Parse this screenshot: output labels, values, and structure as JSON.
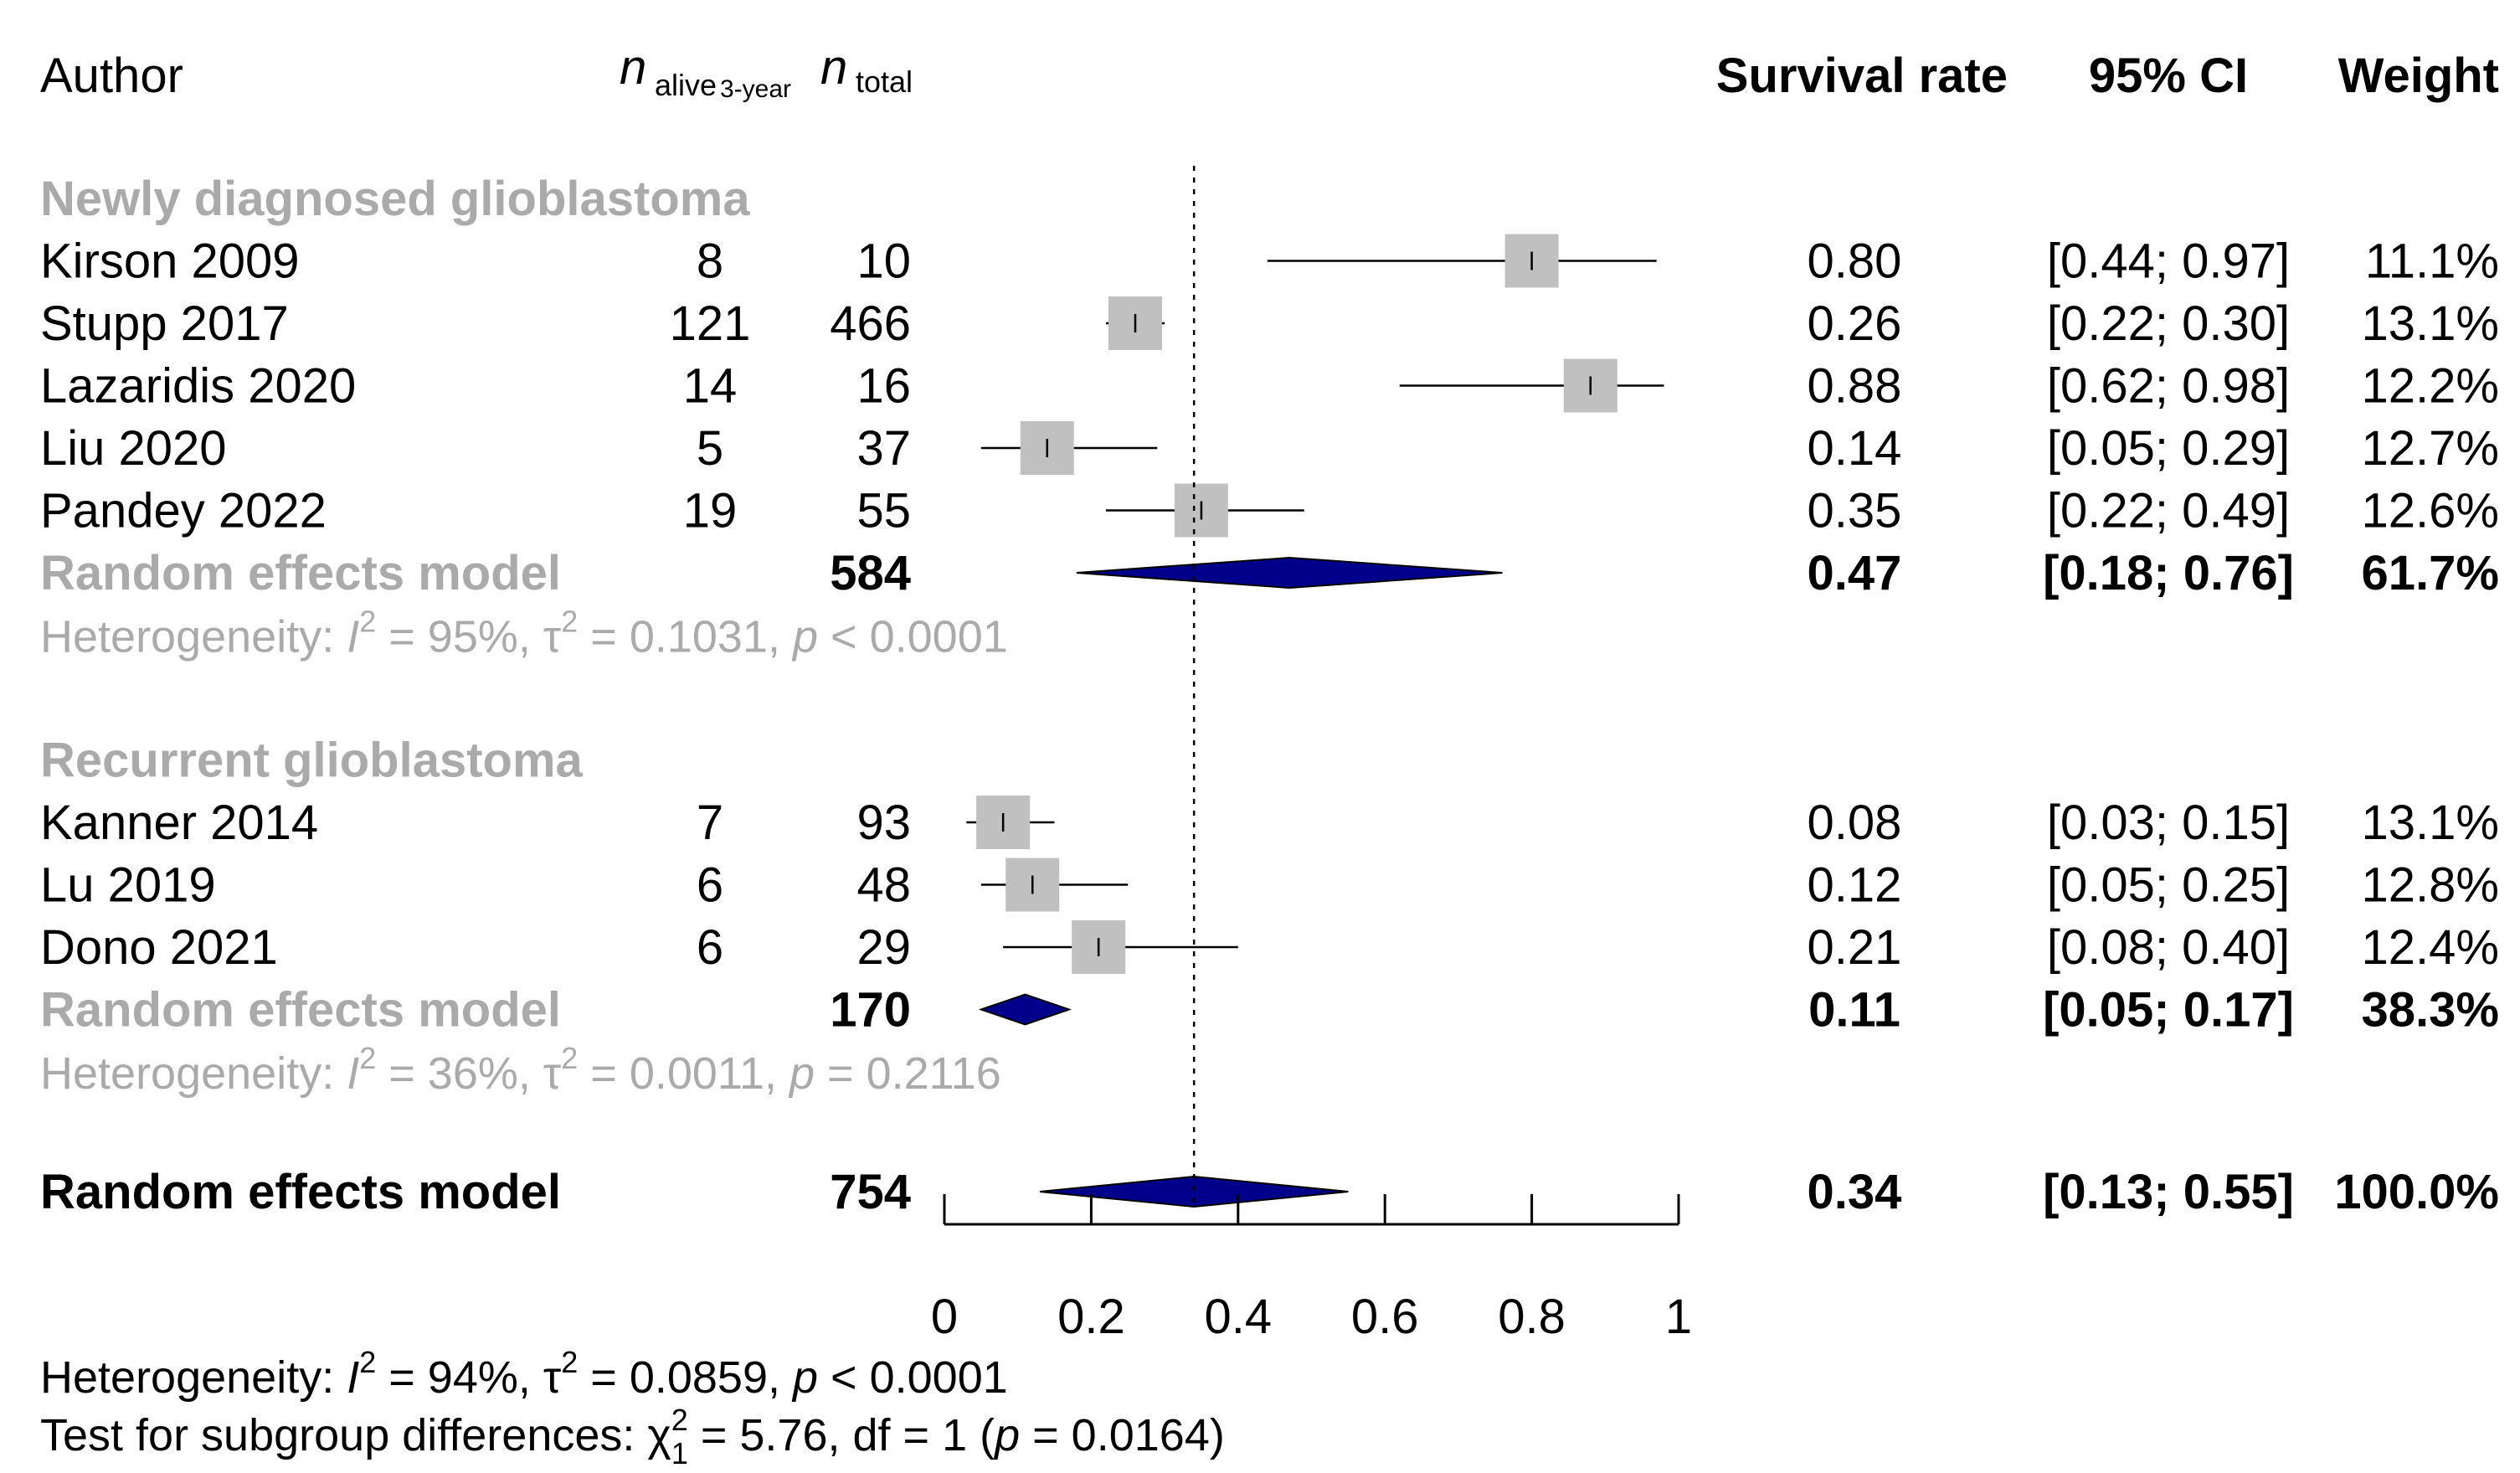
{
  "headers": {
    "author": "Author",
    "n_alive_main": "n",
    "n_alive_sub": "alive",
    "n_alive_subsub": "3-year",
    "n_total_main": "n",
    "n_total_sub": "total",
    "survival": "Survival rate",
    "ci": "95% CI",
    "weight": "Weight"
  },
  "chart_data": {
    "type": "forest",
    "xlim": [
      0,
      1
    ],
    "xticks": [
      0,
      0.2,
      0.4,
      0.6,
      0.8,
      1
    ],
    "xtick_labels": [
      "0",
      "0.2",
      "0.4",
      "0.6",
      "0.8",
      "1"
    ],
    "reference_line": 0.34,
    "groups": [
      {
        "title": "Newly diagnosed glioblastoma",
        "studies": [
          {
            "author": "Kirson 2009",
            "alive": "8",
            "total": "10",
            "rate": 0.8,
            "lower": 0.44,
            "upper": 0.97,
            "rate_text": "0.80",
            "ci_text": "[0.44; 0.97]",
            "weight_text": "11.1%",
            "weight": 11.1
          },
          {
            "author": "Stupp 2017",
            "alive": "121",
            "total": "466",
            "rate": 0.26,
            "lower": 0.22,
            "upper": 0.3,
            "rate_text": "0.26",
            "ci_text": "[0.22; 0.30]",
            "weight_text": "13.1%",
            "weight": 13.1
          },
          {
            "author": "Lazaridis 2020",
            "alive": "14",
            "total": "16",
            "rate": 0.88,
            "lower": 0.62,
            "upper": 0.98,
            "rate_text": "0.88",
            "ci_text": "[0.62; 0.98]",
            "weight_text": "12.2%",
            "weight": 12.2
          },
          {
            "author": "Liu 2020",
            "alive": "5",
            "total": "37",
            "rate": 0.14,
            "lower": 0.05,
            "upper": 0.29,
            "rate_text": "0.14",
            "ci_text": "[0.05; 0.29]",
            "weight_text": "12.7%",
            "weight": 12.7
          },
          {
            "author": "Pandey 2022",
            "alive": "19",
            "total": "55",
            "rate": 0.35,
            "lower": 0.22,
            "upper": 0.49,
            "rate_text": "0.35",
            "ci_text": "[0.22; 0.49]",
            "weight_text": "12.6%",
            "weight": 12.6
          }
        ],
        "model": {
          "label": "Random effects model",
          "total": "584",
          "rate": 0.47,
          "lower": 0.18,
          "upper": 0.76,
          "rate_text": "0.47",
          "ci_text": "[0.18; 0.76]",
          "weight_text": "61.7%"
        },
        "heterogeneity": {
          "prefix": "Heterogeneity: ",
          "i_sym": "I",
          "i_sup": "2",
          "i_value": " = 95%, ",
          "tau_sym": "τ",
          "tau_sup": "2",
          "tau_value": " = 0.1031, ",
          "p_sym": "p",
          "p_value": " < 0.0001"
        }
      },
      {
        "title": "Recurrent glioblastoma",
        "studies": [
          {
            "author": "Kanner 2014",
            "alive": "7",
            "total": "93",
            "rate": 0.08,
            "lower": 0.03,
            "upper": 0.15,
            "rate_text": "0.08",
            "ci_text": "[0.03; 0.15]",
            "weight_text": "13.1%",
            "weight": 13.1
          },
          {
            "author": "Lu 2019",
            "alive": "6",
            "total": "48",
            "rate": 0.12,
            "lower": 0.05,
            "upper": 0.25,
            "rate_text": "0.12",
            "ci_text": "[0.05; 0.25]",
            "weight_text": "12.8%",
            "weight": 12.8
          },
          {
            "author": "Dono 2021",
            "alive": "6",
            "total": "29",
            "rate": 0.21,
            "lower": 0.08,
            "upper": 0.4,
            "rate_text": "0.21",
            "ci_text": "[0.08; 0.40]",
            "weight_text": "12.4%",
            "weight": 12.4
          }
        ],
        "model": {
          "label": "Random effects model",
          "total": "170",
          "rate": 0.11,
          "lower": 0.05,
          "upper": 0.17,
          "rate_text": "0.11",
          "ci_text": "[0.05; 0.17]",
          "weight_text": "38.3%"
        },
        "heterogeneity": {
          "prefix": "Heterogeneity: ",
          "i_sym": "I",
          "i_sup": "2",
          "i_value": " = 36%, ",
          "tau_sym": "τ",
          "tau_sup": "2",
          "tau_value": " = 0.0011, ",
          "p_sym": "p",
          "p_value": " = 0.2116"
        }
      }
    ],
    "overall": {
      "label": "Random effects model",
      "total": "754",
      "rate": 0.34,
      "lower": 0.13,
      "upper": 0.55,
      "rate_text": "0.34",
      "ci_text": "[0.13; 0.55]",
      "weight_text": "100.0%"
    },
    "overall_heterogeneity": {
      "prefix": "Heterogeneity: ",
      "i_sym": "I",
      "i_sup": "2",
      "i_value": " = 94%, ",
      "tau_sym": "τ",
      "tau_sup": "2",
      "tau_value": " = 0.0859, ",
      "p_sym": "p",
      "p_value": " < 0.0001"
    },
    "subgroup_test": {
      "prefix": "Test for subgroup differences: ",
      "chi_sym": "χ",
      "chi_sup": "2",
      "chi_sub": "1",
      "value": " = 5.76, df = 1 (",
      "p_sym": "p",
      "p_value": " = 0.0164)"
    },
    "colors": {
      "study_box": "#c0c0c0",
      "diamond": "#00008b",
      "group_label": "#aaaaaa"
    }
  }
}
